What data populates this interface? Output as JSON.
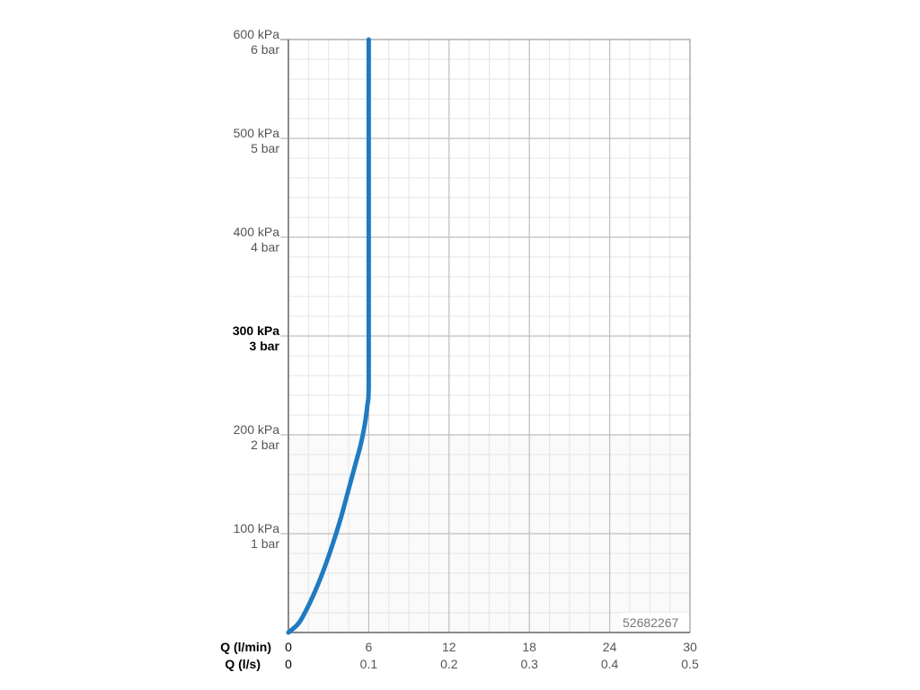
{
  "chart_data": {
    "type": "line",
    "title": "",
    "x_axis_primary": {
      "label": "Q (l/min)",
      "ticks": [
        "0",
        "6",
        "12",
        "18",
        "24",
        "30"
      ],
      "range": [
        0,
        30
      ]
    },
    "x_axis_secondary": {
      "label": "Q (l/s)",
      "ticks": [
        "0",
        "0.1",
        "0.2",
        "0.3",
        "0.4",
        "0.5"
      ]
    },
    "y_axis": {
      "range": [
        0,
        600
      ],
      "unit": "kPa",
      "ticks": [
        {
          "value": 100,
          "kpa": "100 kPa",
          "bar": "1 bar",
          "bold": false
        },
        {
          "value": 200,
          "kpa": "200 kPa",
          "bar": "2 bar",
          "bold": false
        },
        {
          "value": 300,
          "kpa": "300 kPa",
          "bar": "3 bar",
          "bold": true
        },
        {
          "value": 400,
          "kpa": "400 kPa",
          "bar": "4 bar",
          "bold": false
        },
        {
          "value": 500,
          "kpa": "500 kPa",
          "bar": "5 bar",
          "bold": false
        },
        {
          "value": 600,
          "kpa": "600 kPa",
          "bar": "6 bar",
          "bold": false
        }
      ]
    },
    "grid": true,
    "series": [
      {
        "color": "#1f7bc1",
        "x": [
          0,
          0.8,
          1.6,
          2.4,
          3.2,
          3.9,
          4.5,
          5.0,
          5.4,
          5.7,
          5.9,
          6.0,
          6.0,
          6.0,
          6.0
        ],
        "y": [
          0,
          10,
          30,
          55,
          85,
          115,
          145,
          170,
          190,
          210,
          230,
          250,
          350,
          500,
          600
        ]
      }
    ],
    "annotation": "52682267"
  }
}
